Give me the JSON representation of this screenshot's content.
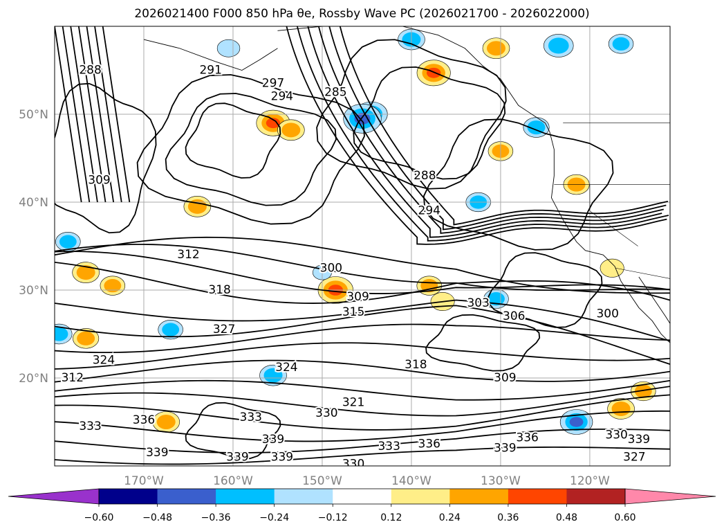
{
  "chart_data": {
    "type": "contour-map",
    "title": "2026021400 F000 850 hPa θe, Rossby Wave PC (2026021700 - 2026022000)",
    "map": {
      "lon_range": [
        -180,
        -111
      ],
      "lat_range": [
        10,
        60
      ],
      "lon_ticks": [
        -170,
        -160,
        -150,
        -140,
        -130,
        -120
      ],
      "lat_ticks": [
        20,
        30,
        40,
        50
      ],
      "lon_tick_labels": [
        "170°W",
        "160°W",
        "150°W",
        "140°W",
        "130°W",
        "120°W"
      ],
      "lat_tick_labels": [
        "20°N",
        "30°N",
        "40°N",
        "50°N"
      ],
      "grid": true
    },
    "colorbar": {
      "orientation": "horizontal",
      "extend": "both",
      "levels": [
        -0.6,
        -0.48,
        -0.36,
        -0.24,
        -0.12,
        0.12,
        0.24,
        0.36,
        0.48,
        0.6
      ],
      "tick_labels": [
        "−0.60",
        "−0.48",
        "−0.36",
        "−0.24",
        "−0.12",
        "0.12",
        "0.24",
        "0.36",
        "0.48",
        "0.60"
      ],
      "colors": [
        "#9932cc",
        "#00008b",
        "#3a5fcd",
        "#00bfff",
        "#b0e2ff",
        "#ffffff",
        "#ffee88",
        "#ffa500",
        "#ff4500",
        "#b22222",
        "#ff88aa"
      ]
    },
    "contour_labels": [
      {
        "text": "288",
        "lon": -176,
        "lat": 55
      },
      {
        "text": "291",
        "lon": -162.5,
        "lat": 55
      },
      {
        "text": "297",
        "lon": -155.5,
        "lat": 53.5
      },
      {
        "text": "294",
        "lon": -154.5,
        "lat": 52
      },
      {
        "text": "285",
        "lon": -148.5,
        "lat": 52.5
      },
      {
        "text": "309",
        "lon": -175,
        "lat": 42.5
      },
      {
        "text": "288",
        "lon": -138.5,
        "lat": 43
      },
      {
        "text": "294",
        "lon": -138,
        "lat": 39
      },
      {
        "text": "312",
        "lon": -165,
        "lat": 34
      },
      {
        "text": "318",
        "lon": -161.5,
        "lat": 30
      },
      {
        "text": "300",
        "lon": -149,
        "lat": 32.5
      },
      {
        "text": "309",
        "lon": -146,
        "lat": 29.2
      },
      {
        "text": "315",
        "lon": -146.5,
        "lat": 27.5
      },
      {
        "text": "303",
        "lon": -132.5,
        "lat": 28.5
      },
      {
        "text": "306",
        "lon": -128.5,
        "lat": 27
      },
      {
        "text": "300",
        "lon": -118,
        "lat": 27.3
      },
      {
        "text": "327",
        "lon": -161,
        "lat": 25.5
      },
      {
        "text": "324",
        "lon": -174.5,
        "lat": 22
      },
      {
        "text": "324",
        "lon": -154,
        "lat": 21.2
      },
      {
        "text": "318",
        "lon": -139.5,
        "lat": 21.5
      },
      {
        "text": "312",
        "lon": -178,
        "lat": 20
      },
      {
        "text": "309",
        "lon": -129.5,
        "lat": 20
      },
      {
        "text": "321",
        "lon": -146.5,
        "lat": 17.2
      },
      {
        "text": "330",
        "lon": -149.5,
        "lat": 16
      },
      {
        "text": "333",
        "lon": -158,
        "lat": 15.5
      },
      {
        "text": "336",
        "lon": -170,
        "lat": 15.2
      },
      {
        "text": "333",
        "lon": -176,
        "lat": 14.5
      },
      {
        "text": "339",
        "lon": -155.5,
        "lat": 13
      },
      {
        "text": "339",
        "lon": -168.5,
        "lat": 11.5
      },
      {
        "text": "339",
        "lon": -154.5,
        "lat": 11
      },
      {
        "text": "339",
        "lon": -159.5,
        "lat": 11
      },
      {
        "text": "336",
        "lon": -138,
        "lat": 12.5
      },
      {
        "text": "339",
        "lon": -129.5,
        "lat": 12
      },
      {
        "text": "336",
        "lon": -127,
        "lat": 13.2
      },
      {
        "text": "333",
        "lon": -142.5,
        "lat": 12.2
      },
      {
        "text": "330",
        "lon": -117,
        "lat": 13.5
      },
      {
        "text": "339",
        "lon": -114.5,
        "lat": 13
      },
      {
        "text": "330",
        "lon": -146.5,
        "lat": 10.2
      },
      {
        "text": "327",
        "lon": -115,
        "lat": 11
      }
    ],
    "shaded_anomalies": [
      {
        "lon": -144.5,
        "lat": 50,
        "value": -0.4
      },
      {
        "lon": -145.5,
        "lat": 49.5,
        "value": -0.5
      },
      {
        "lon": -155.5,
        "lat": 49,
        "value": 0.42
      },
      {
        "lon": -153.5,
        "lat": 48.2,
        "value": 0.3
      },
      {
        "lon": -137.5,
        "lat": 54.7,
        "value": 0.42
      },
      {
        "lon": -130.5,
        "lat": 57.5,
        "value": 0.3
      },
      {
        "lon": -140,
        "lat": 58.5,
        "value": -0.3
      },
      {
        "lon": -123.5,
        "lat": 57.8,
        "value": -0.35
      },
      {
        "lon": -116.5,
        "lat": 58,
        "value": -0.26
      },
      {
        "lon": -126,
        "lat": 48.5,
        "value": -0.28
      },
      {
        "lon": -130,
        "lat": 45.8,
        "value": 0.26
      },
      {
        "lon": -148.5,
        "lat": 30,
        "value": 0.45
      },
      {
        "lon": -150,
        "lat": 32,
        "value": -0.15
      },
      {
        "lon": -164,
        "lat": 39.5,
        "value": 0.3
      },
      {
        "lon": -178.5,
        "lat": 35.5,
        "value": -0.26
      },
      {
        "lon": -176.5,
        "lat": 32,
        "value": 0.3
      },
      {
        "lon": -173.5,
        "lat": 30.5,
        "value": 0.26
      },
      {
        "lon": -179.5,
        "lat": 25,
        "value": -0.28
      },
      {
        "lon": -176.5,
        "lat": 24.5,
        "value": 0.28
      },
      {
        "lon": -167,
        "lat": 25.5,
        "value": -0.26
      },
      {
        "lon": -130.5,
        "lat": 29,
        "value": -0.26
      },
      {
        "lon": -138,
        "lat": 30.5,
        "value": 0.26
      },
      {
        "lon": -136.5,
        "lat": 28.7,
        "value": 0.24
      },
      {
        "lon": -155.5,
        "lat": 20.3,
        "value": -0.3
      },
      {
        "lon": -121.5,
        "lat": 15,
        "value": -0.4
      },
      {
        "lon": -114,
        "lat": 18.5,
        "value": 0.26
      },
      {
        "lon": -116.5,
        "lat": 16.5,
        "value": 0.3
      },
      {
        "lon": -117.5,
        "lat": 32.5,
        "value": 0.24
      },
      {
        "lon": -121.5,
        "lat": 42,
        "value": 0.28
      },
      {
        "lon": -132.5,
        "lat": 40,
        "value": -0.26
      },
      {
        "lon": -160.5,
        "lat": 57.5,
        "value": -0.22
      },
      {
        "lon": -167.5,
        "lat": 15,
        "value": 0.3
      }
    ]
  }
}
